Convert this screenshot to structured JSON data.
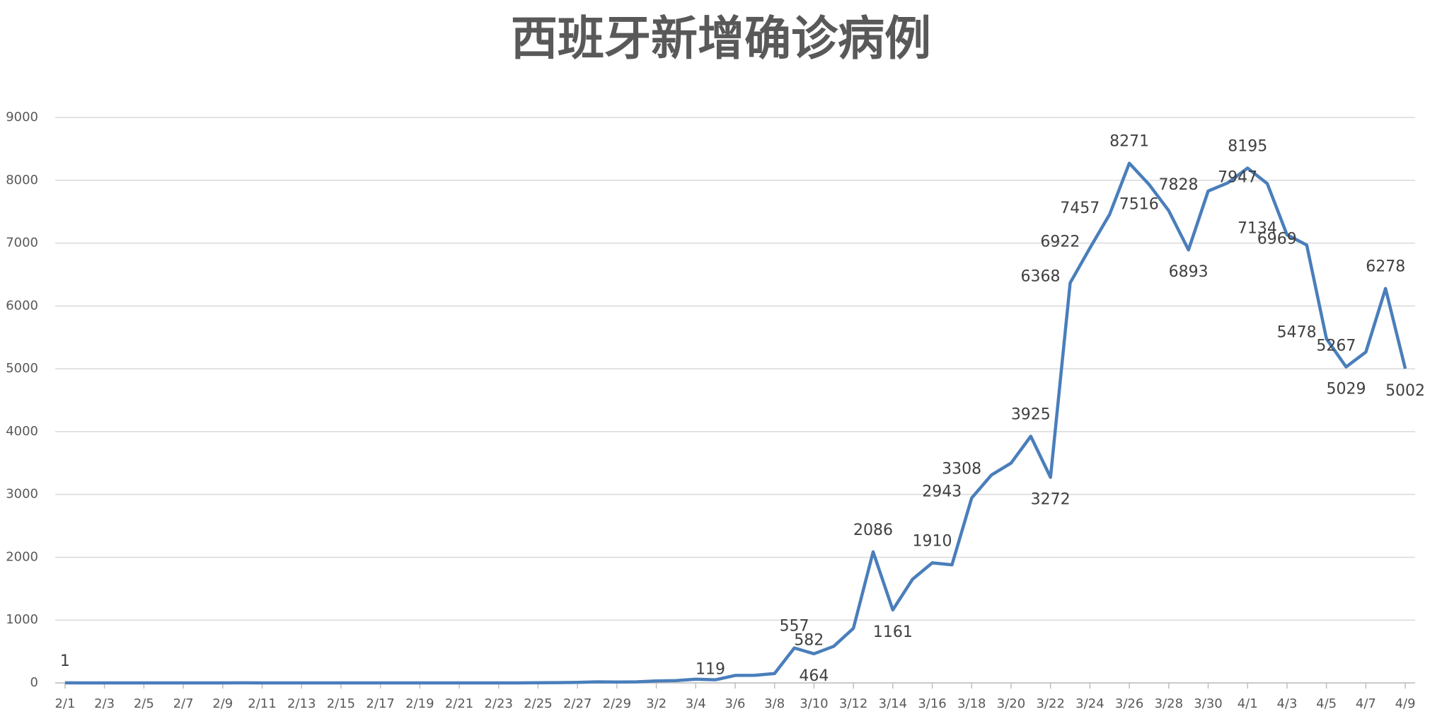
{
  "chart_data": {
    "type": "line",
    "title": "西班牙新增确诊病例",
    "categories": [
      "2/1",
      null,
      "2/3",
      null,
      "2/5",
      null,
      "2/7",
      null,
      "2/9",
      null,
      "2/11",
      null,
      "2/13",
      null,
      "2/15",
      null,
      "2/17",
      null,
      "2/19",
      null,
      "2/21",
      null,
      "2/23",
      null,
      "2/25",
      null,
      "2/27",
      null,
      "2/29",
      null,
      "3/2",
      null,
      "3/4",
      null,
      "3/6",
      null,
      "3/8",
      null,
      "3/10",
      null,
      "3/12",
      null,
      "3/14",
      null,
      "3/16",
      null,
      "3/18",
      null,
      "3/20",
      null,
      "3/22",
      null,
      "3/24",
      null,
      "3/26",
      null,
      "3/28",
      null,
      "3/30",
      null,
      "4/1",
      null,
      "4/3",
      null,
      "4/5",
      null,
      "4/7",
      null,
      "4/9"
    ],
    "values": [
      1,
      0,
      0,
      0,
      0,
      0,
      0,
      0,
      0,
      1,
      0,
      0,
      0,
      0,
      0,
      0,
      0,
      0,
      0,
      0,
      0,
      0,
      0,
      0,
      3,
      4,
      9,
      17,
      13,
      17,
      31,
      36,
      60,
      50,
      119,
      120,
      150,
      557,
      464,
      582,
      869,
      2086,
      1161,
      1650,
      1910,
      1880,
      2943,
      3308,
      3500,
      3925,
      3272,
      6368,
      6922,
      7457,
      8271,
      7933,
      7516,
      6893,
      7828,
      7960,
      8195,
      7947,
      7134,
      6969,
      5478,
      5029,
      5267,
      6278,
      5002
    ],
    "value_labels": [
      "1",
      null,
      null,
      null,
      null,
      null,
      null,
      null,
      null,
      null,
      null,
      null,
      null,
      null,
      null,
      null,
      null,
      null,
      null,
      null,
      null,
      null,
      null,
      null,
      null,
      null,
      null,
      null,
      null,
      null,
      null,
      null,
      null,
      null,
      "119",
      null,
      null,
      "557",
      "464",
      "582",
      null,
      "2086",
      "1161",
      null,
      "1910",
      null,
      "2943",
      "3308",
      null,
      "3925",
      "3272",
      "6368",
      "6922",
      "7457",
      "8271",
      null,
      "7516",
      "6893",
      "7828",
      null,
      "8195",
      "7947",
      "7134",
      "6969",
      "5478",
      "5029",
      "5267",
      "6278",
      "5002"
    ],
    "color": "#4a7ebb",
    "ylim": [
      0,
      9000
    ],
    "yticks": [
      0,
      1000,
      2000,
      3000,
      4000,
      5000,
      6000,
      7000,
      8000,
      9000
    ],
    "grid": true
  }
}
